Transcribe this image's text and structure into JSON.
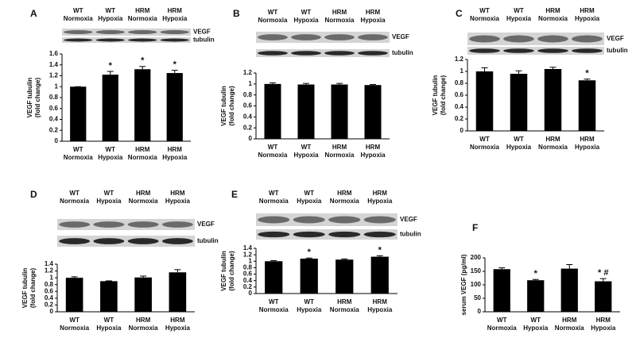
{
  "chart_data": [
    {
      "type": "bar",
      "panel": "A",
      "blot_labels": [
        [
          "WT",
          "Normoxia"
        ],
        [
          "WT",
          "Hypoxia"
        ],
        [
          "HRM",
          "Normoxia"
        ],
        [
          "HRM",
          "Hypoxia"
        ]
      ],
      "band_labels": [
        "VEGF",
        "tubulin"
      ],
      "ylabel": [
        "VEGF tubulin",
        "(fold change)"
      ],
      "categories": [
        [
          "WT",
          "Normoxia"
        ],
        [
          "WT",
          "Hypoxia"
        ],
        [
          "HRM",
          "Normoxia"
        ],
        [
          "HRM",
          "Hypoxia"
        ]
      ],
      "values": [
        1.0,
        1.22,
        1.32,
        1.25
      ],
      "errors": [
        0,
        0.06,
        0.05,
        0.05
      ],
      "annotations": [
        null,
        "*",
        "*",
        "*"
      ],
      "color": "#000000",
      "ylim": [
        0,
        1.6
      ],
      "yticks": [
        0,
        0.2,
        0.4,
        0.6,
        0.8,
        1,
        1.2,
        1.4,
        1.6
      ]
    },
    {
      "type": "bar",
      "panel": "B",
      "blot_labels": [
        [
          "WT",
          "Normoxia"
        ],
        [
          "WT",
          "Hypoxia"
        ],
        [
          "HRM",
          "Normoxia"
        ],
        [
          "HRM",
          "Hypoxia"
        ]
      ],
      "band_labels": [
        "VEGF",
        "tubulin"
      ],
      "ylabel": [
        "VEGF tubulin",
        "(fold change)"
      ],
      "categories": [
        [
          "WT",
          "Normoxia"
        ],
        [
          "WT",
          "Hypoxia"
        ],
        [
          "HRM",
          "Normoxia"
        ],
        [
          "HRM",
          "Hypoxia"
        ]
      ],
      "values": [
        1.0,
        0.99,
        0.99,
        0.98
      ],
      "errors": [
        0.02,
        0.02,
        0.02,
        0.01
      ],
      "annotations": [
        null,
        null,
        null,
        null
      ],
      "color": "#000000",
      "ylim": [
        0,
        1.2
      ],
      "yticks": [
        0,
        0.2,
        0.4,
        0.6,
        0.8,
        1,
        1.2
      ]
    },
    {
      "type": "bar",
      "panel": "C",
      "blot_labels": [
        [
          "WT",
          "Normoxia"
        ],
        [
          "WT",
          "Hypoxia"
        ],
        [
          "HRM",
          "Normoxia"
        ],
        [
          "HRM",
          "Hypoxia"
        ]
      ],
      "band_labels": [
        "VEGF",
        "tubulin"
      ],
      "ylabel": [
        "VEGF tubulin",
        "(fold change)"
      ],
      "categories": [
        [
          "WT",
          "Normoxia"
        ],
        [
          "WT",
          "Hypoxia"
        ],
        [
          "HRM",
          "Normoxia"
        ],
        [
          "HRM",
          "Hypoxia"
        ]
      ],
      "values": [
        1.0,
        0.96,
        1.04,
        0.85
      ],
      "errors": [
        0.06,
        0.05,
        0.03,
        0.02
      ],
      "annotations": [
        null,
        null,
        null,
        "*"
      ],
      "color": "#000000",
      "ylim": [
        0,
        1.2
      ],
      "yticks": [
        0,
        0.2,
        0.4,
        0.6,
        0.8,
        1,
        1.2
      ]
    },
    {
      "type": "bar",
      "panel": "D",
      "blot_labels": [
        [
          "WT",
          "Normoxia"
        ],
        [
          "WT",
          "Hypoxia"
        ],
        [
          "HRM",
          "Normoxia"
        ],
        [
          "HRM",
          "Hypoxia"
        ]
      ],
      "band_labels": [
        "VEGF",
        "tubulin"
      ],
      "ylabel": [
        "VEGF tubulin",
        "(fold change)"
      ],
      "categories": [
        [
          "WT",
          "Normoxia"
        ],
        [
          "WT",
          "Hypoxia"
        ],
        [
          "HRM",
          "Normoxia"
        ],
        [
          "HRM",
          "Hypoxia"
        ]
      ],
      "values": [
        1.0,
        0.9,
        1.01,
        1.16
      ],
      "errors": [
        0.03,
        0.01,
        0.04,
        0.08
      ],
      "annotations": [
        null,
        null,
        null,
        null
      ],
      "color": "#000000",
      "ylim": [
        0,
        1.4
      ],
      "yticks": [
        0,
        0.2,
        0.4,
        0.6,
        0.8,
        1,
        1.2,
        1.4
      ]
    },
    {
      "type": "bar",
      "panel": "E",
      "blot_labels": [
        [
          "WT",
          "Normoxia"
        ],
        [
          "WT",
          "Hypoxia"
        ],
        [
          "HRM",
          "Normoxia"
        ],
        [
          "HRM",
          "Hypoxia"
        ]
      ],
      "band_labels": [
        "VEGF",
        "tubulin"
      ],
      "ylabel": [
        "VEGF tubulin",
        "(fold change)"
      ],
      "categories": [
        [
          "WT",
          "Normoxia"
        ],
        [
          "WT",
          "Hypoxia"
        ],
        [
          "HRM",
          "Normoxia"
        ],
        [
          "HRM",
          "Hypoxia"
        ]
      ],
      "values": [
        1.0,
        1.08,
        1.05,
        1.14
      ],
      "errors": [
        0.02,
        0.02,
        0.02,
        0.03
      ],
      "annotations": [
        null,
        "*",
        null,
        "*"
      ],
      "color": "#000000",
      "ylim": [
        0,
        1.4
      ],
      "yticks": [
        0,
        0.2,
        0.4,
        0.6,
        0.8,
        1,
        1.2,
        1.4
      ]
    },
    {
      "type": "bar",
      "panel": "F",
      "ylabel": [
        "serum VEGF (pg/ml)"
      ],
      "categories": [
        [
          "WT",
          "Normoxia"
        ],
        [
          "WT",
          "Hypoxia"
        ],
        [
          "HRM",
          "Normoxia"
        ],
        [
          "HRM",
          "Hypoxia"
        ]
      ],
      "values": [
        158,
        117,
        160,
        113
      ],
      "errors": [
        5,
        3,
        15,
        10
      ],
      "annotations": [
        null,
        "*",
        null,
        "* #"
      ],
      "color": "#000000",
      "ylim": [
        0,
        200
      ],
      "yticks": [
        0,
        50,
        100,
        150,
        200
      ]
    }
  ]
}
